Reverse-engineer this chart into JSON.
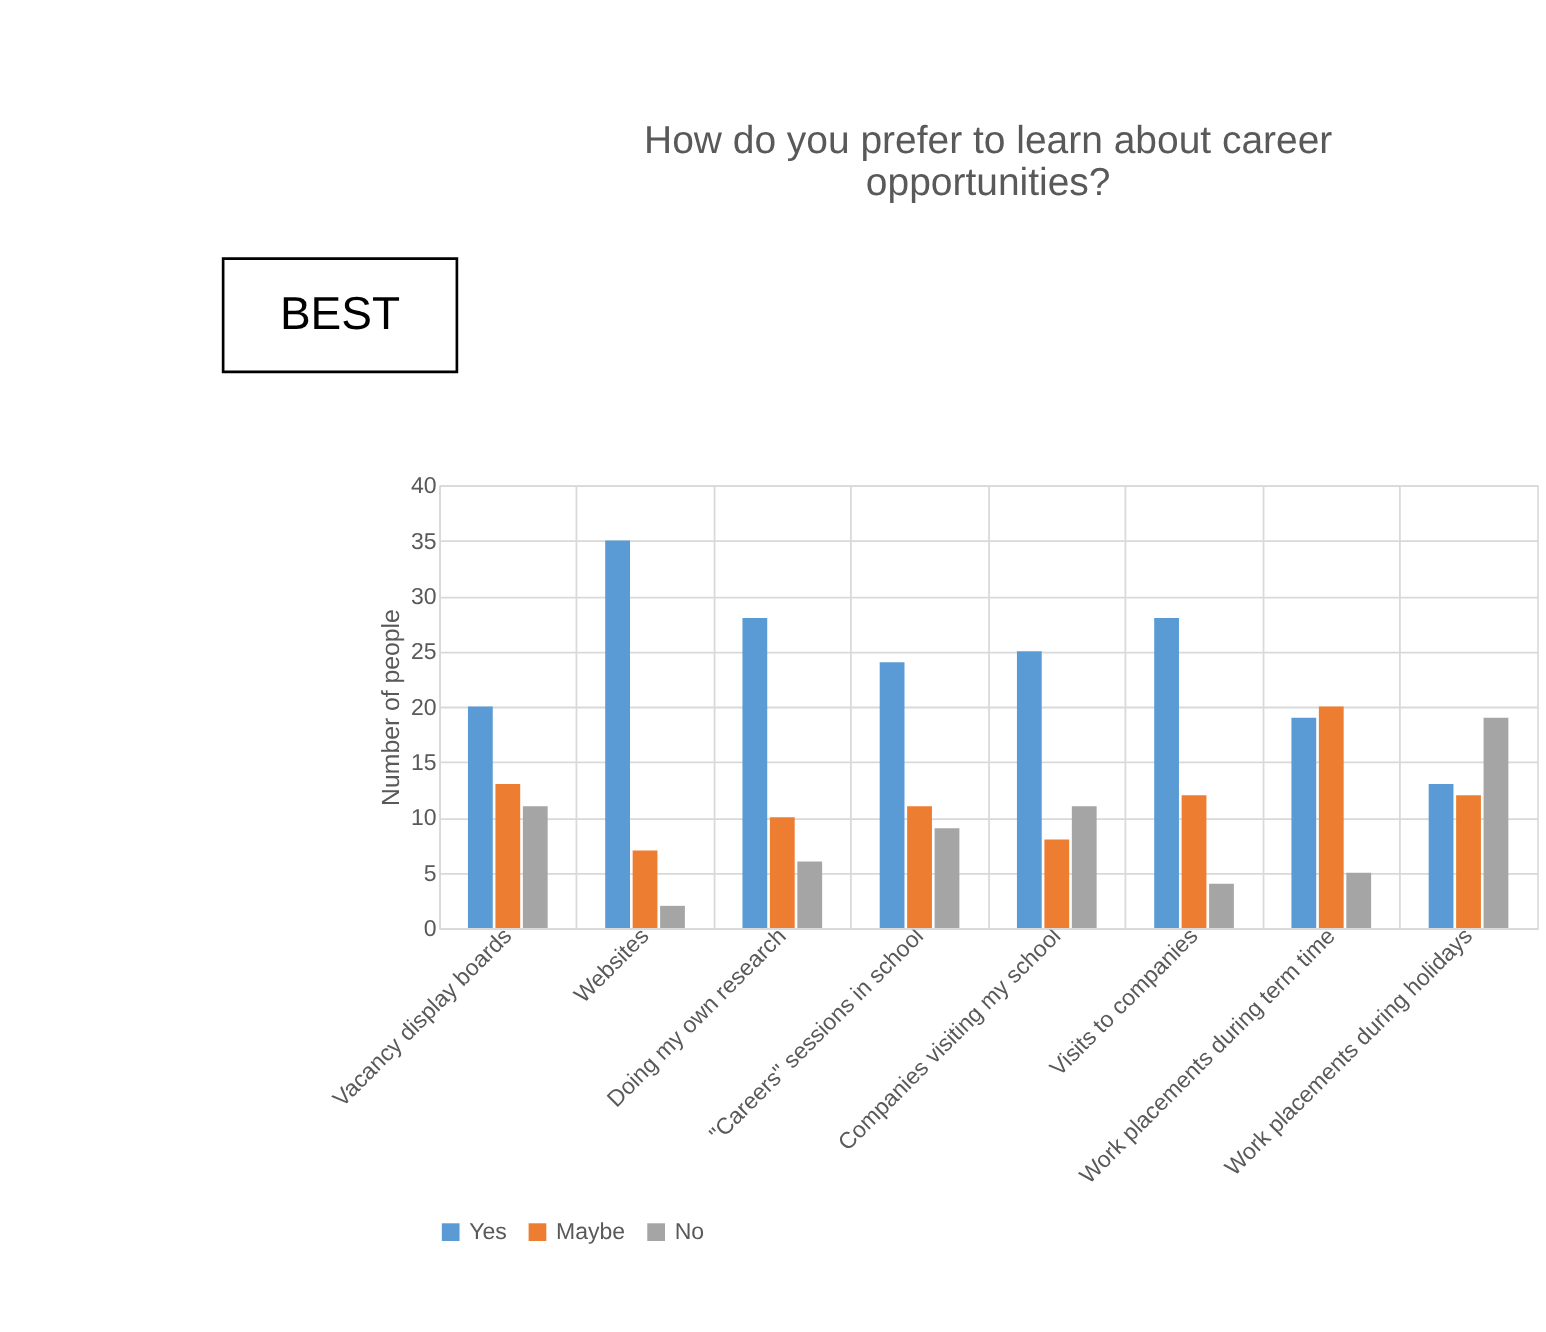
{
  "chart_data": {
    "type": "bar",
    "title": [
      "How do you prefer to learn about career",
      "opportunities?"
    ],
    "ylabel": "Number of people",
    "categories": [
      "Vacancy display boards",
      "Websites",
      "Doing my own research",
      "\"Careers\" sessions in school",
      "Companies visiting my school",
      "Visits to companies",
      "Work placements during term time",
      "Work placements during holidays"
    ],
    "series": [
      {
        "name": "Yes",
        "color": "#5b9bd5",
        "values": [
          20,
          35,
          28,
          24,
          25,
          28,
          19,
          13
        ]
      },
      {
        "name": "Maybe",
        "color": "#ed7d31",
        "values": [
          13,
          7,
          10,
          11,
          8,
          12,
          20,
          12
        ]
      },
      {
        "name": "No",
        "color": "#a5a5a5",
        "values": [
          11,
          2,
          6,
          9,
          11,
          4,
          5,
          19
        ]
      }
    ],
    "ylim": [
      0,
      40
    ],
    "yticks": [
      0,
      5,
      10,
      15,
      20,
      25,
      30,
      35,
      40
    ],
    "grid": true,
    "legend": "bottom",
    "annotations": [
      "BEST"
    ]
  }
}
